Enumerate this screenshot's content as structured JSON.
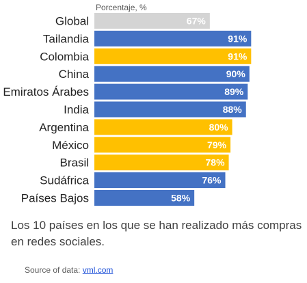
{
  "chart_data": {
    "type": "bar",
    "orientation": "horizontal",
    "axis_unit_label": "Porcentaje, %",
    "categories": [
      "Global",
      "Tailandia",
      "Colombia",
      "China",
      "Emiratos Árabes",
      "India",
      "Argentina",
      "México",
      "Brasil",
      "Sudáfrica",
      "Países Bajos"
    ],
    "values": [
      67,
      91,
      91,
      90,
      89,
      88,
      80,
      79,
      78,
      76,
      58
    ],
    "value_labels": [
      "67%",
      "91%",
      "91%",
      "90%",
      "89%",
      "88%",
      "80%",
      "79%",
      "78%",
      "76%",
      "58%"
    ],
    "bar_colors": [
      "#d4d4d4",
      "#4472c4",
      "#ffc000",
      "#4472c4",
      "#4472c4",
      "#4472c4",
      "#ffc000",
      "#ffc000",
      "#ffc000",
      "#4472c4",
      "#4472c4"
    ],
    "xlim": [
      0,
      100
    ],
    "grid": false,
    "legend": "none"
  },
  "caption": "Los 10 países en los que se han realizado más compras en redes sociales.",
  "source": {
    "prefix": "Source of data: ",
    "link_text": "vml.com"
  }
}
